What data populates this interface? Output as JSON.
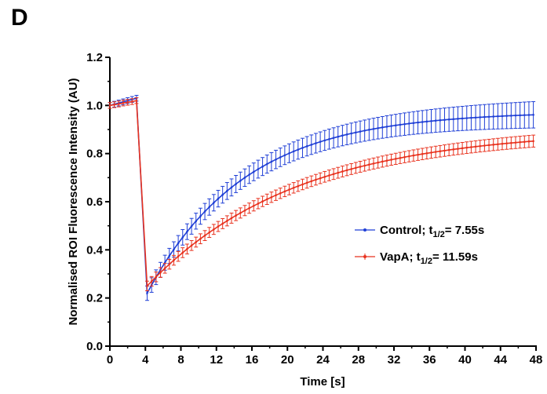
{
  "panel_label": "D",
  "chart_data": {
    "type": "line",
    "xlabel": "Time [s]",
    "ylabel": "Normalised ROI Fluorescence Intensity (AU)",
    "xlim": [
      0,
      48
    ],
    "ylim": [
      0.0,
      1.2
    ],
    "x_ticks": [
      "0",
      "4",
      "8",
      "12",
      "16",
      "20",
      "24",
      "28",
      "32",
      "36",
      "40",
      "44",
      "48"
    ],
    "y_ticks": [
      "0.0",
      "0.2",
      "0.4",
      "0.6",
      "0.8",
      "1.0",
      "1.2"
    ],
    "legend_position": "right",
    "error_bars": true,
    "series": [
      {
        "name": "Control; t1/2= 7.55s",
        "legend_main": "Control; t",
        "legend_sub": "1/2",
        "legend_rest": "= 7.55s",
        "color": "#1f3fd6",
        "pre_bleach": [
          [
            0,
            1.0
          ],
          [
            0.5,
            1.005
          ],
          [
            1,
            1.01
          ],
          [
            1.5,
            1.015
          ],
          [
            2,
            1.02
          ],
          [
            2.5,
            1.025
          ],
          [
            3,
            1.03
          ]
        ],
        "bleach_time": 4.2,
        "start_value": 0.22,
        "plateau": 0.975,
        "half_time": 7.55,
        "error_start": 0.03,
        "error_end": 0.055
      },
      {
        "name": "VapA; t1/2= 11.59s",
        "legend_main": "VapA; t",
        "legend_sub": "1/2",
        "legend_rest": "= 11.59s",
        "color": "#e8321e",
        "pre_bleach": [
          [
            0,
            1.0
          ],
          [
            0.5,
            1.003
          ],
          [
            1,
            1.006
          ],
          [
            1.5,
            1.01
          ],
          [
            2,
            1.013
          ],
          [
            2.5,
            1.016
          ],
          [
            3,
            1.02
          ]
        ],
        "bleach_time": 4.2,
        "start_value": 0.25,
        "plateau": 0.9,
        "half_time": 11.59,
        "error_start": 0.02,
        "error_end": 0.025
      }
    ]
  }
}
